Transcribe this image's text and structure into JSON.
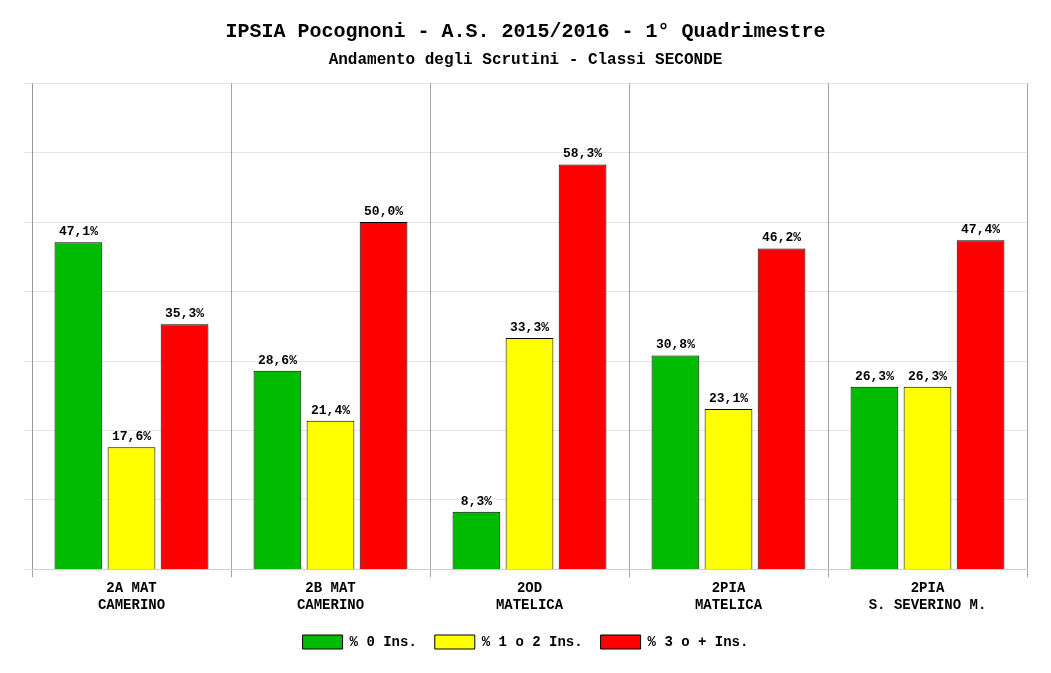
{
  "chart_data": {
    "type": "bar",
    "title": "IPSIA Pocognoni - A.S. 2015/2016 - 1° Quadrimestre",
    "subtitle": "Andamento degli Scrutini - Classi SECONDE",
    "categories": [
      "2A MAT\nCAMERINO",
      "2B MAT\nCAMERINO",
      "2OD\nMATELICA",
      "2PIA\nMATELICA",
      "2PIA\nS. SEVERINO M."
    ],
    "series": [
      {
        "name": "% 0 Ins.",
        "color": "#00BB00",
        "values": [
          47.1,
          28.6,
          8.3,
          30.8,
          26.3
        ],
        "value_labels": [
          "47,1%",
          "28,6%",
          "8,3%",
          "30,8%",
          "26,3%"
        ]
      },
      {
        "name": "% 1 o 2 Ins.",
        "color": "#FFFF00",
        "values": [
          17.6,
          21.4,
          33.3,
          23.1,
          26.3
        ],
        "value_labels": [
          "17,6%",
          "21,4%",
          "33,3%",
          "23,1%",
          "26,3%"
        ]
      },
      {
        "name": "% 3 o + Ins.",
        "color": "#FF0000",
        "values": [
          35.3,
          50.0,
          58.3,
          46.2,
          47.4
        ],
        "value_labels": [
          "35,3%",
          "50,0%",
          "58,3%",
          "46,2%",
          "47,4%"
        ]
      }
    ],
    "ylim": [
      0,
      70
    ],
    "yticks": [
      0,
      10,
      20,
      30,
      40,
      50,
      60,
      70
    ],
    "grid": true,
    "legend": "bottom",
    "data_labels": true,
    "tick_labels": "x"
  }
}
